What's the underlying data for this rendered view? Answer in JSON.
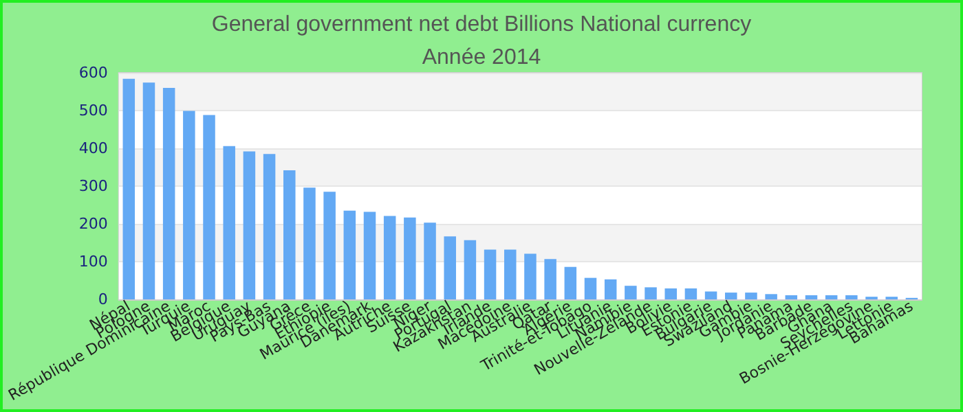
{
  "chart_data": {
    "type": "bar",
    "title": "General government net debt Billions National currency",
    "subtitle": "Année 2014",
    "categories": [
      "Népal",
      "Pologne",
      "République Dominicaine",
      "Turquie",
      "Maroc",
      "Belgique",
      "Uruguay",
      "Pays-Bas",
      "Guyana",
      "Grèce",
      "Ethiopie",
      "Maurice (îles)",
      "Danemark",
      "Autriche",
      "Suisse",
      "Niger",
      "Portugal",
      "Kazakhstan",
      "Irlande",
      "Macédoine",
      "Australie",
      "Qatar",
      "Algérie",
      "Trinité-et-Tobago",
      "Lituanie",
      "Namibie",
      "Nouvelle-Zélande",
      "Bolivie",
      "Estonie",
      "Bulgarie",
      "Swaziland",
      "Gambie",
      "Jordanie",
      "Panama",
      "Barbade",
      "Ghana",
      "Seychelles",
      "Bosnie-Herzégovine",
      "Lettonie",
      "Bahamas"
    ],
    "values": [
      584,
      574,
      560,
      499,
      488,
      406,
      392,
      385,
      342,
      296,
      285,
      235,
      232,
      221,
      217,
      203,
      167,
      157,
      132,
      132,
      121,
      107,
      86,
      57,
      53,
      36,
      32,
      29,
      29,
      21,
      18,
      18,
      14,
      11,
      11,
      11,
      11,
      7,
      7,
      4
    ],
    "color": "#63a9f4",
    "ylim": [
      0,
      600
    ],
    "yticks": [
      0,
      100,
      200,
      300,
      400,
      500,
      600
    ],
    "grid": "y"
  }
}
